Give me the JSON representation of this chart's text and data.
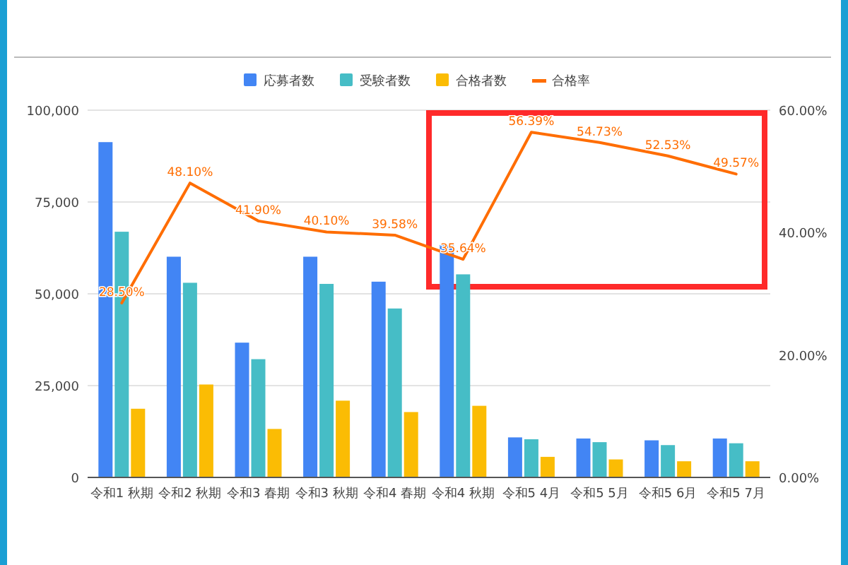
{
  "chart_data": {
    "type": "bar",
    "categories": [
      "令和1 秋期",
      "令和2 秋期",
      "令和3 春期",
      "令和3 秋期",
      "令和4 春期",
      "令和4 秋期",
      "令和5 4月",
      "令和5 5月",
      "令和5 6月",
      "令和5 7月"
    ],
    "series": [
      {
        "name": "応募者数",
        "type": "bar",
        "color": "#4285f4",
        "values": [
          91300,
          60100,
          36700,
          60100,
          53300,
          63300,
          10900,
          10600,
          10100,
          10600
        ]
      },
      {
        "name": "受験者数",
        "type": "bar",
        "color": "#46bdc6",
        "values": [
          66900,
          53000,
          32200,
          52700,
          46000,
          55300,
          10400,
          9600,
          8800,
          9300
        ]
      },
      {
        "name": "合格者数",
        "type": "bar",
        "color": "#fbbc04",
        "values": [
          18700,
          25300,
          13200,
          20900,
          17800,
          19500,
          5600,
          4900,
          4400,
          4400
        ]
      },
      {
        "name": "合格率",
        "type": "line",
        "axis": "y2",
        "color": "#ff6d01",
        "line_style": "solid",
        "marker": "none",
        "values": [
          28.5,
          48.1,
          41.9,
          40.1,
          39.58,
          35.64,
          56.39,
          54.73,
          52.53,
          49.57
        ],
        "value_labels": [
          "28.50%",
          "48.10%",
          "41.90%",
          "40.10%",
          "39.58%",
          "35.64%",
          "56.39%",
          "54.73%",
          "52.53%",
          "49.57%"
        ]
      }
    ],
    "ylim": [
      0,
      100000
    ],
    "yticks": [
      {
        "value": 0,
        "label": "0"
      },
      {
        "value": 25000,
        "label": "25,000"
      },
      {
        "value": 50000,
        "label": "50,000"
      },
      {
        "value": 75000,
        "label": "75,000"
      },
      {
        "value": 100000,
        "label": "100,000"
      }
    ],
    "y2lim": [
      0,
      60
    ],
    "y2ticks": [
      {
        "value": 0,
        "label": "0.00%"
      },
      {
        "value": 20,
        "label": "20.00%"
      },
      {
        "value": 40,
        "label": "40.00%"
      },
      {
        "value": 60,
        "label": "60.00%"
      }
    ],
    "grid": "y",
    "legend": "top"
  }
}
